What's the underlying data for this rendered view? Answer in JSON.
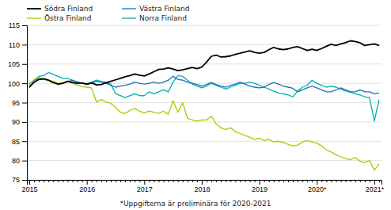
{
  "chart_data": {
    "type": "line",
    "subtitle": "*Uppgifterna är preliminära för 2020-2021",
    "categories": [
      "2015",
      null,
      null,
      null,
      null,
      null,
      null,
      null,
      null,
      null,
      null,
      null,
      "2016",
      null,
      null,
      null,
      null,
      null,
      null,
      null,
      null,
      null,
      null,
      null,
      "2017",
      null,
      null,
      null,
      null,
      null,
      null,
      null,
      null,
      null,
      null,
      null,
      "2018",
      null,
      null,
      null,
      null,
      null,
      null,
      null,
      null,
      null,
      null,
      null,
      "2019",
      null,
      null,
      null,
      null,
      null,
      null,
      null,
      null,
      null,
      null,
      null,
      "2020*",
      null,
      null,
      null,
      null,
      null,
      null,
      null,
      null,
      null,
      null,
      null,
      "2021*",
      null
    ],
    "series": [
      {
        "name": "Södra Finland",
        "color": "#000000",
        "values": [
          99.0,
          100.3,
          101.0,
          101.2,
          100.8,
          100.2,
          99.8,
          100.0,
          100.5,
          100.2,
          100.0,
          100.1,
          99.8,
          100.1,
          99.6,
          99.7,
          100.1,
          100.5,
          100.9,
          101.3,
          101.7,
          102.0,
          102.4,
          102.1,
          101.9,
          102.4,
          103.0,
          103.6,
          103.7,
          104.0,
          103.7,
          103.3,
          103.5,
          103.8,
          104.1,
          103.8,
          104.2,
          105.5,
          107.0,
          107.3,
          106.8,
          106.9,
          107.1,
          107.5,
          107.8,
          108.1,
          108.4,
          108.0,
          107.8,
          108.0,
          108.7,
          109.3,
          108.9,
          108.7,
          108.9,
          109.3,
          109.5,
          109.0,
          108.5,
          108.8,
          108.5,
          109.0,
          109.6,
          110.1,
          109.8,
          110.2,
          110.5,
          111.0,
          110.8,
          110.5,
          109.8,
          110.0,
          110.2,
          109.8
        ]
      },
      {
        "name": "Östra Finland",
        "color": "#b5c400",
        "values": [
          99.5,
          101.0,
          101.5,
          101.0,
          100.8,
          100.5,
          100.0,
          100.2,
          100.5,
          100.0,
          99.5,
          99.2,
          99.0,
          98.8,
          95.2,
          95.8,
          95.2,
          94.8,
          93.8,
          92.5,
          92.2,
          93.0,
          93.5,
          92.8,
          92.3,
          92.8,
          92.5,
          92.2,
          92.8,
          92.0,
          95.5,
          92.5,
          95.0,
          91.0,
          90.5,
          90.2,
          90.5,
          90.5,
          91.5,
          89.5,
          88.5,
          88.0,
          88.5,
          87.5,
          87.0,
          86.5,
          86.0,
          85.5,
          85.8,
          85.2,
          85.5,
          84.8,
          85.0,
          84.7,
          84.2,
          83.8,
          84.0,
          84.8,
          85.2,
          84.8,
          84.5,
          83.8,
          82.8,
          82.2,
          81.5,
          81.0,
          80.5,
          80.2,
          80.8,
          79.8,
          79.5,
          80.0,
          77.5,
          79.2
        ]
      },
      {
        "name": "Västra Finland",
        "color": "#1f6fbd",
        "values": [
          99.8,
          100.8,
          101.2,
          101.0,
          100.8,
          100.3,
          99.8,
          100.0,
          100.5,
          100.7,
          100.4,
          100.0,
          99.7,
          100.0,
          100.5,
          100.3,
          100.0,
          99.5,
          99.0,
          99.3,
          99.5,
          99.8,
          100.3,
          100.0,
          99.8,
          100.0,
          100.3,
          100.0,
          100.3,
          100.8,
          101.8,
          101.0,
          100.8,
          100.3,
          100.0,
          99.7,
          99.3,
          99.7,
          100.2,
          99.7,
          99.3,
          99.0,
          99.5,
          99.8,
          100.3,
          99.8,
          99.3,
          99.0,
          98.8,
          99.0,
          99.7,
          100.2,
          99.8,
          99.3,
          99.0,
          98.7,
          97.8,
          98.3,
          98.8,
          99.3,
          98.8,
          98.3,
          97.8,
          97.8,
          98.3,
          98.8,
          98.3,
          97.8,
          97.8,
          98.3,
          97.8,
          97.8,
          97.3,
          97.5
        ]
      },
      {
        "name": "Norra Finland",
        "color": "#00b0b0",
        "values": [
          98.8,
          100.8,
          101.8,
          102.0,
          102.8,
          102.3,
          101.8,
          101.3,
          101.3,
          100.8,
          100.3,
          100.0,
          99.8,
          100.3,
          100.8,
          100.5,
          100.3,
          99.8,
          97.3,
          96.8,
          96.3,
          96.8,
          97.3,
          96.8,
          96.8,
          97.8,
          97.3,
          97.8,
          98.3,
          97.8,
          100.3,
          102.0,
          101.8,
          100.8,
          99.8,
          99.3,
          98.8,
          99.3,
          100.0,
          99.5,
          99.0,
          98.5,
          99.0,
          99.5,
          100.0,
          100.0,
          100.3,
          100.0,
          99.5,
          99.0,
          98.5,
          98.0,
          97.5,
          97.3,
          97.0,
          96.5,
          98.0,
          99.0,
          99.5,
          100.8,
          100.0,
          99.5,
          99.0,
          99.3,
          99.0,
          98.5,
          98.0,
          97.7,
          97.3,
          97.0,
          96.5,
          96.3,
          90.2,
          95.8
        ]
      }
    ],
    "ylim": [
      75,
      115
    ],
    "yticks": [
      75,
      80,
      85,
      90,
      95,
      100,
      105,
      110,
      115
    ],
    "grid": true,
    "legend": "top-left"
  }
}
